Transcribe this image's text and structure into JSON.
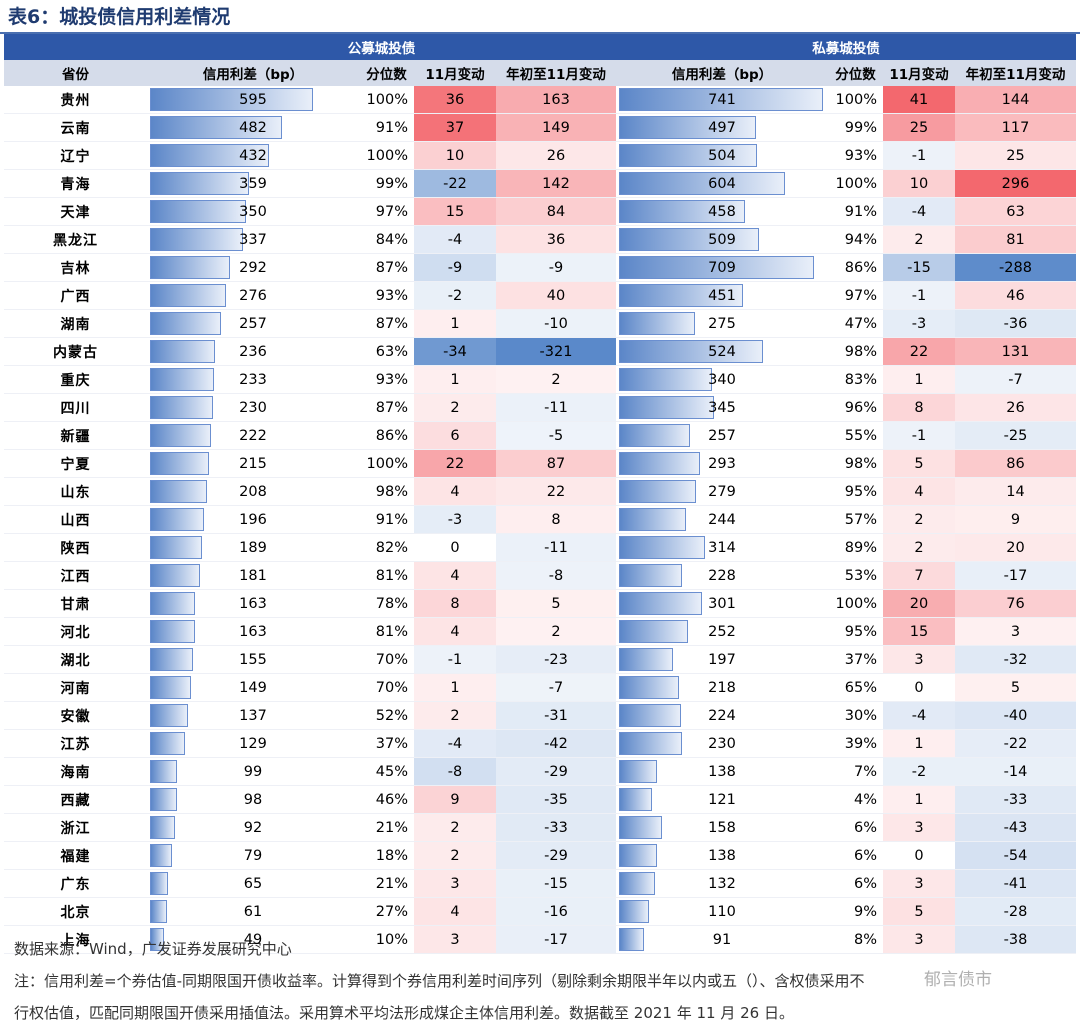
{
  "title": "表6：城投债信用利差情况",
  "groups": {
    "public": "公募城投债",
    "private": "私募城投债"
  },
  "headers": {
    "province": "省份",
    "spread": "信用利差（bp）",
    "percentile": "分位数",
    "mchg": "11月变动",
    "ytd": "年初至11月变动"
  },
  "colors": {
    "pos": "#f25c63",
    "neg": "#4d80c6",
    "header_bg": "#d5dcea",
    "group_bg": "#2e58a8"
  },
  "bar_max": 750,
  "rows": [
    {
      "p": "贵州",
      "pub": {
        "s": 595,
        "q": "100%",
        "m": 36,
        "y": 163
      },
      "pri": {
        "s": 741,
        "q": "100%",
        "m": 41,
        "y": 144
      }
    },
    {
      "p": "云南",
      "pub": {
        "s": 482,
        "q": "91%",
        "m": 37,
        "y": 149
      },
      "pri": {
        "s": 497,
        "q": "99%",
        "m": 25,
        "y": 117
      }
    },
    {
      "p": "辽宁",
      "pub": {
        "s": 432,
        "q": "100%",
        "m": 10,
        "y": 26
      },
      "pri": {
        "s": 504,
        "q": "93%",
        "m": -1,
        "y": 25
      }
    },
    {
      "p": "青海",
      "pub": {
        "s": 359,
        "q": "99%",
        "m": -22,
        "y": 142
      },
      "pri": {
        "s": 604,
        "q": "100%",
        "m": 10,
        "y": 296
      }
    },
    {
      "p": "天津",
      "pub": {
        "s": 350,
        "q": "97%",
        "m": 15,
        "y": 84
      },
      "pri": {
        "s": 458,
        "q": "91%",
        "m": -4,
        "y": 63
      }
    },
    {
      "p": "黑龙江",
      "pub": {
        "s": 337,
        "q": "84%",
        "m": -4,
        "y": 36
      },
      "pri": {
        "s": 509,
        "q": "94%",
        "m": 2,
        "y": 81
      }
    },
    {
      "p": "吉林",
      "pub": {
        "s": 292,
        "q": "87%",
        "m": -9,
        "y": -9
      },
      "pri": {
        "s": 709,
        "q": "86%",
        "m": -15,
        "y": -288
      }
    },
    {
      "p": "广西",
      "pub": {
        "s": 276,
        "q": "93%",
        "m": -2,
        "y": 40
      },
      "pri": {
        "s": 451,
        "q": "97%",
        "m": -1,
        "y": 46
      }
    },
    {
      "p": "湖南",
      "pub": {
        "s": 257,
        "q": "87%",
        "m": 1,
        "y": -10
      },
      "pri": {
        "s": 275,
        "q": "47%",
        "m": -3,
        "y": -36
      }
    },
    {
      "p": "内蒙古",
      "pub": {
        "s": 236,
        "q": "63%",
        "m": -34,
        "y": -321
      },
      "pri": {
        "s": 524,
        "q": "98%",
        "m": 22,
        "y": 131
      }
    },
    {
      "p": "重庆",
      "pub": {
        "s": 233,
        "q": "93%",
        "m": 1,
        "y": 2
      },
      "pri": {
        "s": 340,
        "q": "83%",
        "m": 1,
        "y": -7
      }
    },
    {
      "p": "四川",
      "pub": {
        "s": 230,
        "q": "87%",
        "m": 2,
        "y": -11
      },
      "pri": {
        "s": 345,
        "q": "96%",
        "m": 8,
        "y": 26
      }
    },
    {
      "p": "新疆",
      "pub": {
        "s": 222,
        "q": "86%",
        "m": 6,
        "y": -5
      },
      "pri": {
        "s": 257,
        "q": "55%",
        "m": -1,
        "y": -25
      }
    },
    {
      "p": "宁夏",
      "pub": {
        "s": 215,
        "q": "100%",
        "m": 22,
        "y": 87
      },
      "pri": {
        "s": 293,
        "q": "98%",
        "m": 5,
        "y": 86
      }
    },
    {
      "p": "山东",
      "pub": {
        "s": 208,
        "q": "98%",
        "m": 4,
        "y": 22
      },
      "pri": {
        "s": 279,
        "q": "95%",
        "m": 4,
        "y": 14
      }
    },
    {
      "p": "山西",
      "pub": {
        "s": 196,
        "q": "91%",
        "m": -3,
        "y": 8
      },
      "pri": {
        "s": 244,
        "q": "57%",
        "m": 2,
        "y": 9
      }
    },
    {
      "p": "陕西",
      "pub": {
        "s": 189,
        "q": "82%",
        "m": 0,
        "y": -11
      },
      "pri": {
        "s": 314,
        "q": "89%",
        "m": 2,
        "y": 20
      }
    },
    {
      "p": "江西",
      "pub": {
        "s": 181,
        "q": "81%",
        "m": 4,
        "y": -8
      },
      "pri": {
        "s": 228,
        "q": "53%",
        "m": 7,
        "y": -17
      }
    },
    {
      "p": "甘肃",
      "pub": {
        "s": 163,
        "q": "78%",
        "m": 8,
        "y": 5
      },
      "pri": {
        "s": 301,
        "q": "100%",
        "m": 20,
        "y": 76
      }
    },
    {
      "p": "河北",
      "pub": {
        "s": 163,
        "q": "81%",
        "m": 4,
        "y": 2
      },
      "pri": {
        "s": 252,
        "q": "95%",
        "m": 15,
        "y": 3
      }
    },
    {
      "p": "湖北",
      "pub": {
        "s": 155,
        "q": "70%",
        "m": -1,
        "y": -23
      },
      "pri": {
        "s": 197,
        "q": "37%",
        "m": 3,
        "y": -32
      }
    },
    {
      "p": "河南",
      "pub": {
        "s": 149,
        "q": "70%",
        "m": 1,
        "y": -7
      },
      "pri": {
        "s": 218,
        "q": "65%",
        "m": 0,
        "y": 5
      }
    },
    {
      "p": "安徽",
      "pub": {
        "s": 137,
        "q": "52%",
        "m": 2,
        "y": -31
      },
      "pri": {
        "s": 224,
        "q": "30%",
        "m": -4,
        "y": -40
      }
    },
    {
      "p": "江苏",
      "pub": {
        "s": 129,
        "q": "37%",
        "m": -4,
        "y": -42
      },
      "pri": {
        "s": 230,
        "q": "39%",
        "m": 1,
        "y": -22
      }
    },
    {
      "p": "海南",
      "pub": {
        "s": 99,
        "q": "45%",
        "m": -8,
        "y": -29
      },
      "pri": {
        "s": 138,
        "q": "7%",
        "m": -2,
        "y": -14
      }
    },
    {
      "p": "西藏",
      "pub": {
        "s": 98,
        "q": "46%",
        "m": 9,
        "y": -35
      },
      "pri": {
        "s": 121,
        "q": "4%",
        "m": 1,
        "y": -33
      }
    },
    {
      "p": "浙江",
      "pub": {
        "s": 92,
        "q": "21%",
        "m": 2,
        "y": -33
      },
      "pri": {
        "s": 158,
        "q": "6%",
        "m": 3,
        "y": -43
      }
    },
    {
      "p": "福建",
      "pub": {
        "s": 79,
        "q": "18%",
        "m": 2,
        "y": -29
      },
      "pri": {
        "s": 138,
        "q": "6%",
        "m": 0,
        "y": -54
      }
    },
    {
      "p": "广东",
      "pub": {
        "s": 65,
        "q": "21%",
        "m": 3,
        "y": -15
      },
      "pri": {
        "s": 132,
        "q": "6%",
        "m": 3,
        "y": -41
      }
    },
    {
      "p": "北京",
      "pub": {
        "s": 61,
        "q": "27%",
        "m": 4,
        "y": -16
      },
      "pri": {
        "s": 110,
        "q": "9%",
        "m": 5,
        "y": -28
      }
    },
    {
      "p": "上海",
      "pub": {
        "s": 49,
        "q": "10%",
        "m": 3,
        "y": -17
      },
      "pri": {
        "s": 91,
        "q": "8%",
        "m": 3,
        "y": -38
      }
    }
  ],
  "footer": {
    "source": "数据来源：Wind，广发证券发展研究中心",
    "note1": "注：信用利差=个券估值-同期限国开债收益率。计算得到个券信用利差时间序列（剔除剩余期限半年以内或五（）、含权债采用不",
    "note2": "行权估值，匹配同期限国开债采用插值法。采用算术平均法形成煤企主体信用利差。数据截至 2021 年 11 月 26 日。",
    "watermark": "郁言债市"
  }
}
